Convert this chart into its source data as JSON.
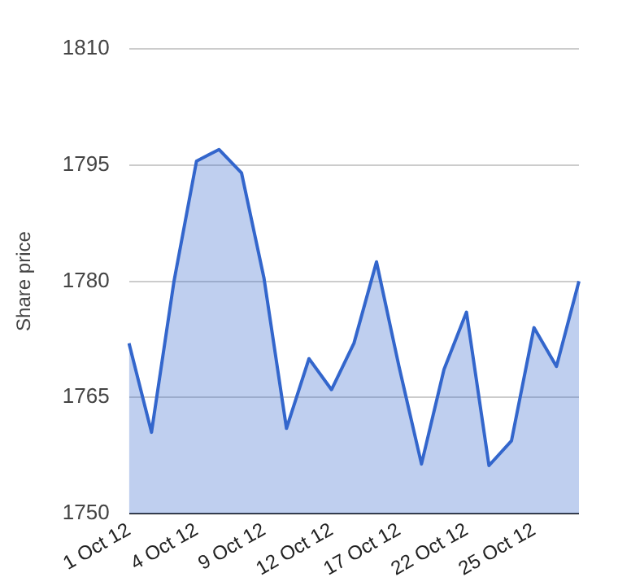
{
  "chart_data": {
    "type": "area",
    "ylabel": "Share price",
    "categories": [
      "1 Oct 12",
      null,
      null,
      "4 Oct 12",
      null,
      null,
      "9 Oct 12",
      null,
      null,
      "12 Oct 12",
      null,
      null,
      "17 Oct 12",
      null,
      null,
      "22 Oct 12",
      null,
      null,
      "25 Oct 12",
      null,
      null
    ],
    "series": [
      {
        "color": "#3366cc",
        "values": [
          1772,
          1760.5,
          1780,
          1795.5,
          1797,
          1794,
          1780.4,
          1761,
          1770,
          1766,
          1772,
          1782.5,
          1769,
          1756.4,
          1768.6,
          1776,
          1756.2,
          1759.4,
          1774,
          1769,
          1780
        ]
      }
    ],
    "ylim": [
      1750,
      1810
    ],
    "yticks": [
      1750,
      1765,
      1780,
      1795,
      1810
    ],
    "grid": "y",
    "legend": false
  }
}
